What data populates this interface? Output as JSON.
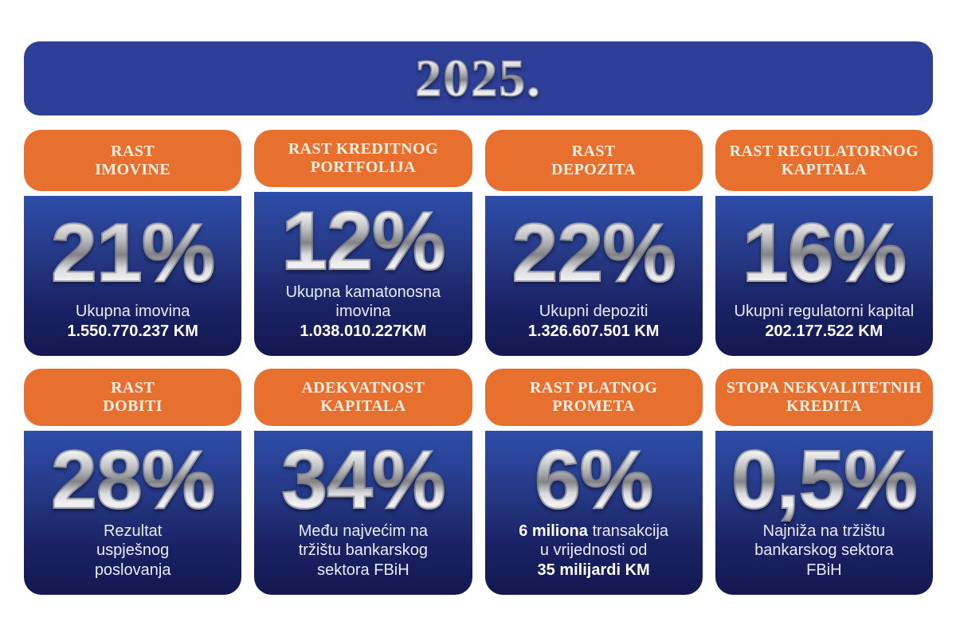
{
  "banner": {
    "year": "2025."
  },
  "colors": {
    "banner_blue": "#2d3f96",
    "header_orange": "#e7702e",
    "body_blue_top": "#2e4da9",
    "body_blue_bottom": "#131850",
    "header_text": "#f8efe3",
    "body_text": "#e9ecf6",
    "metal_silver": "#c6c7cb"
  },
  "cards": [
    {
      "title": "RAST\nIMOVINE",
      "value": "21%",
      "desc": [
        {
          "segments": [
            {
              "text": "Ukupna imovina",
              "bold": false
            }
          ]
        },
        {
          "segments": [
            {
              "text": "1.550.770.237 KM",
              "bold": true
            }
          ]
        }
      ]
    },
    {
      "title": "RAST KREDITNOG\nPORTFOLIJA",
      "value": "12%",
      "desc": [
        {
          "segments": [
            {
              "text": "Ukupna kamatonosna imovina",
              "bold": false
            }
          ]
        },
        {
          "segments": [
            {
              "text": "1.038.010.227KM",
              "bold": true
            }
          ]
        }
      ]
    },
    {
      "title": "RAST\nDEPOZITA",
      "value": "22%",
      "desc": [
        {
          "segments": [
            {
              "text": "Ukupni depoziti",
              "bold": false
            }
          ]
        },
        {
          "segments": [
            {
              "text": "1.326.607.501 KM",
              "bold": true
            }
          ]
        }
      ]
    },
    {
      "title": "RAST REGULATORNOG\nKAPITALA",
      "value": "16%",
      "desc": [
        {
          "segments": [
            {
              "text": "Ukupni regulatorni kapital",
              "bold": false
            }
          ]
        },
        {
          "segments": [
            {
              "text": "202.177.522 KM",
              "bold": true
            }
          ]
        }
      ]
    },
    {
      "title": "RAST\nDOBITI",
      "value": "28%",
      "desc": [
        {
          "segments": [
            {
              "text": "Rezultat",
              "bold": false
            }
          ]
        },
        {
          "segments": [
            {
              "text": "uspješnog",
              "bold": false
            }
          ]
        },
        {
          "segments": [
            {
              "text": "poslovanja",
              "bold": false
            }
          ]
        }
      ]
    },
    {
      "title": "ADEKVATNOST\nKAPITALA",
      "value": "34%",
      "desc": [
        {
          "segments": [
            {
              "text": "Među najvećim na",
              "bold": false
            }
          ]
        },
        {
          "segments": [
            {
              "text": "tržištu bankarskog",
              "bold": false
            }
          ]
        },
        {
          "segments": [
            {
              "text": "sektora FBiH",
              "bold": false
            }
          ]
        }
      ]
    },
    {
      "title": "RAST PLATNOG\nPROMETA",
      "value": "6%",
      "desc": [
        {
          "segments": [
            {
              "text": "6 miliona ",
              "bold": true
            },
            {
              "text": "transakcija",
              "bold": false
            }
          ]
        },
        {
          "segments": [
            {
              "text": "u vrijednosti od",
              "bold": false
            }
          ]
        },
        {
          "segments": [
            {
              "text": "35 milijardi KM",
              "bold": true
            }
          ]
        }
      ]
    },
    {
      "title": "STOPA NEKVALITETNIH\nKREDITA",
      "value": "0,5%",
      "desc": [
        {
          "segments": [
            {
              "text": "Najniža na tržištu",
              "bold": false
            }
          ]
        },
        {
          "segments": [
            {
              "text": "bankarskog sektora",
              "bold": false
            }
          ]
        },
        {
          "segments": [
            {
              "text": "FBiH",
              "bold": false
            }
          ]
        }
      ]
    }
  ],
  "chart_data": {
    "type": "table",
    "title": "2025.",
    "categories": [
      "RAST IMOVINE",
      "RAST KREDITNOG PORTFOLIJA",
      "RAST DEPOZITA",
      "RAST REGULATORNOG KAPITALA",
      "RAST DOBITI",
      "ADEKVATNOST KAPITALA",
      "RAST PLATNOG PROMETA",
      "STOPA NEKVALITETNIH KREDITA"
    ],
    "values": [
      21,
      12,
      22,
      16,
      28,
      34,
      6,
      0.5
    ],
    "unit": "%",
    "notes": [
      "Ukupna imovina 1.550.770.237 KM",
      "Ukupna kamatonosna imovina 1.038.010.227KM",
      "Ukupni depoziti 1.326.607.501 KM",
      "Ukupni regulatorni kapital 202.177.522 KM",
      "Rezultat uspješnog poslovanja",
      "Među najvećim na tržištu bankarskog sektora FBiH",
      "6 miliona transakcija u vrijednosti od 35 milijardi KM",
      "Najniža na tržištu bankarskog sektora FBiH"
    ]
  }
}
